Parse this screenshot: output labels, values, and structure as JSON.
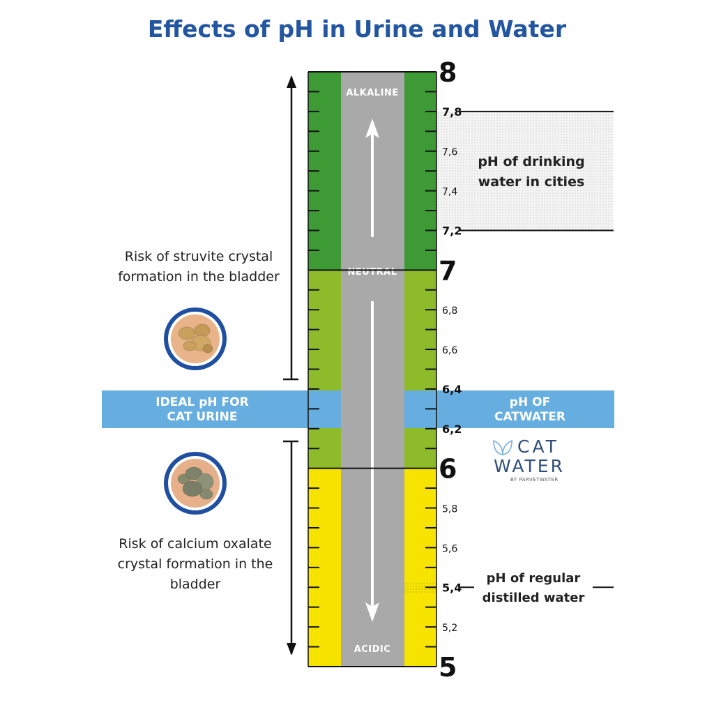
{
  "title": "Effects of pH in Urine and Water",
  "scale": {
    "major_labels": [
      "8",
      "7",
      "6",
      "5"
    ],
    "minor_labels": [
      "7,8",
      "7,6",
      "7,4",
      "7,2",
      "6,8",
      "6,6",
      "6,4",
      "6,2",
      "5,8",
      "5,6",
      "5,4",
      "5,2"
    ],
    "zones": [
      {
        "name": "alkaline",
        "from_ph": 7,
        "to_ph": 8,
        "color": "#3d9a35"
      },
      {
        "name": "neutral-mid",
        "from_ph": 6,
        "to_ph": 7,
        "color": "#8dbb2a"
      },
      {
        "name": "acidic",
        "from_ph": 5,
        "to_ph": 6,
        "color": "#f6e400"
      }
    ],
    "road_labels": {
      "alkaline": "ALKALINE",
      "neutral": "NEUTRAL",
      "acidic": "ACIDIC"
    }
  },
  "ideal_band": {
    "left_text": [
      "IDEAL pH FOR",
      "CAT URINE"
    ],
    "right_text": [
      "pH OF",
      "CATWATER"
    ],
    "color": "#66ade0",
    "range": [
      6.2,
      6.4
    ]
  },
  "annotations": {
    "struvite": [
      "Risk of struvite crystal",
      "formation in the bladder"
    ],
    "oxalate": [
      "Risk of calcium oxalate",
      "crystal formation in the",
      "bladder"
    ],
    "drinking_water": [
      "pH of drinking",
      "water in cities"
    ],
    "distilled_water": [
      "pH of regular",
      "distilled water"
    ]
  },
  "logo": {
    "line1": "CAT",
    "line2": "WATER",
    "sub": "BY PARVETWATER"
  },
  "colors": {
    "title": "#2356a0",
    "road": "#a9a9a9",
    "ring": "#1f4fa0"
  }
}
